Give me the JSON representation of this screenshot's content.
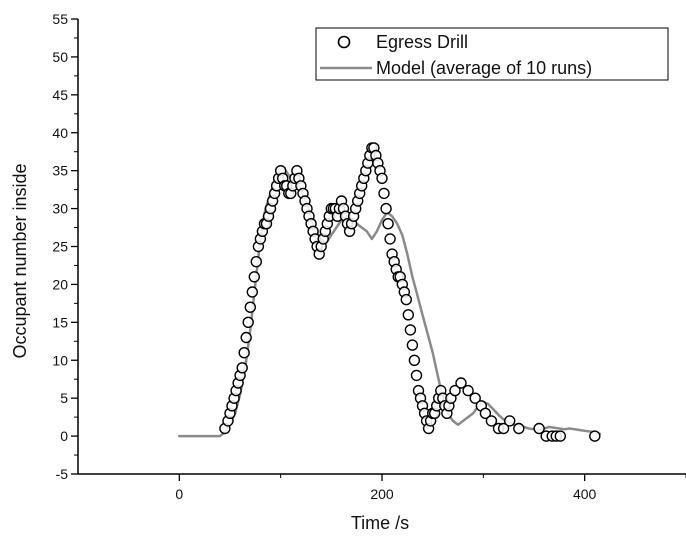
{
  "chart_data": {
    "type": "scatter",
    "title": "",
    "xlabel": "Time /s",
    "ylabel": "Occupant number inside",
    "xlim": [
      -100,
      500
    ],
    "ylim": [
      -5,
      55
    ],
    "x_ticks": [
      0,
      200,
      400
    ],
    "y_ticks": [
      -5,
      0,
      5,
      10,
      15,
      20,
      25,
      30,
      35,
      40,
      45,
      50,
      55
    ],
    "grid": false,
    "legend_position": "top-right",
    "colors": {
      "drill_marker": "#000000",
      "model_line": "#8a8a8a"
    },
    "series": [
      {
        "name": "Egress Drill",
        "type": "scatter",
        "marker": "open-circle",
        "x": [
          45,
          48,
          50,
          52,
          54,
          56,
          58,
          60,
          62,
          64,
          66,
          68,
          70,
          72,
          74,
          76,
          78,
          80,
          82,
          84,
          86,
          88,
          90,
          92,
          94,
          96,
          98,
          100,
          102,
          104,
          106,
          108,
          110,
          112,
          114,
          116,
          118,
          120,
          122,
          124,
          126,
          128,
          130,
          132,
          134,
          136,
          138,
          140,
          142,
          144,
          146,
          148,
          150,
          152,
          154,
          156,
          158,
          160,
          162,
          164,
          166,
          168,
          170,
          172,
          174,
          176,
          178,
          180,
          182,
          184,
          186,
          188,
          190,
          192,
          194,
          196,
          198,
          200,
          202,
          204,
          206,
          208,
          210,
          212,
          214,
          216,
          218,
          220,
          222,
          224,
          226,
          228,
          230,
          232,
          234,
          236,
          238,
          240,
          242,
          244,
          246,
          248,
          250,
          252,
          254,
          256,
          258,
          260,
          262,
          264,
          266,
          268,
          272,
          278,
          285,
          292,
          298,
          302,
          308,
          315,
          320,
          326,
          335,
          355,
          362,
          368,
          372,
          376,
          410
        ],
        "y": [
          1,
          2,
          3,
          4,
          5,
          6,
          7,
          8,
          9,
          11,
          13,
          15,
          17,
          19,
          21,
          23,
          25,
          26,
          27,
          28,
          28,
          29,
          30,
          31,
          32,
          33,
          34,
          35,
          34,
          33,
          33,
          32,
          32,
          33,
          34,
          35,
          34,
          33,
          32,
          31,
          30,
          29,
          28,
          27,
          26,
          25,
          24,
          25,
          26,
          27,
          28,
          29,
          30,
          30,
          30,
          29,
          30,
          31,
          30,
          29,
          28,
          27,
          28,
          29,
          30,
          31,
          32,
          33,
          34,
          35,
          36,
          37,
          38,
          38,
          37,
          36,
          35,
          34,
          32,
          30,
          28,
          26,
          24,
          23,
          22,
          21,
          21,
          20,
          19,
          18,
          16,
          14,
          12,
          10,
          8,
          6,
          5,
          4,
          3,
          2,
          1,
          2,
          3,
          3,
          4,
          5,
          6,
          5,
          4,
          3,
          4,
          5,
          6,
          7,
          6,
          5,
          4,
          3,
          2,
          1,
          1,
          2,
          1,
          1,
          0,
          0,
          0,
          0,
          0
        ]
      },
      {
        "name": "Model (average of 10 runs)",
        "type": "line",
        "x": [
          0,
          40,
          45,
          50,
          55,
          60,
          65,
          70,
          75,
          80,
          85,
          90,
          95,
          100,
          105,
          110,
          115,
          120,
          125,
          130,
          135,
          140,
          145,
          150,
          155,
          160,
          165,
          170,
          175,
          180,
          185,
          190,
          195,
          200,
          205,
          210,
          215,
          220,
          225,
          230,
          235,
          240,
          245,
          250,
          255,
          260,
          265,
          270,
          275,
          280,
          285,
          290,
          295,
          300,
          305,
          310,
          315,
          320,
          325,
          330,
          335,
          340,
          345,
          350,
          355,
          360,
          365,
          370,
          375,
          380,
          385,
          390,
          395,
          400,
          405,
          410,
          415
        ],
        "y": [
          0,
          0,
          0.5,
          1.5,
          3,
          5.5,
          9,
          14,
          20,
          26,
          30,
          32,
          34,
          35.5,
          35,
          34,
          33.5,
          32.5,
          31,
          29,
          27,
          26,
          25.5,
          26.5,
          27.5,
          28.5,
          29,
          28.5,
          28,
          27.5,
          27,
          26,
          27,
          28.5,
          29.5,
          29,
          28,
          26.5,
          24,
          21,
          18.5,
          16,
          13.5,
          11,
          8,
          5,
          3,
          2,
          1.5,
          2,
          2.5,
          3,
          4,
          4.5,
          4.2,
          3.5,
          2.8,
          2.2,
          1.8,
          1.5,
          1.4,
          1.2,
          1,
          0.9,
          0.8,
          1,
          1.2,
          1.1,
          1,
          0.9,
          1,
          0.9,
          0.8,
          0.7,
          0.6,
          0.5,
          0.3
        ]
      }
    ]
  }
}
